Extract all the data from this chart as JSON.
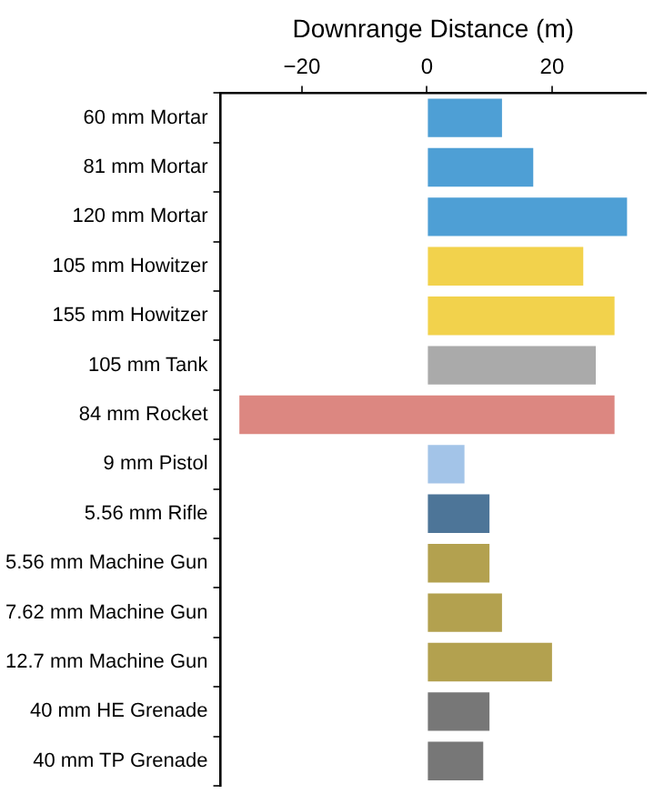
{
  "chart_data": {
    "type": "bar",
    "orientation": "horizontal",
    "xlabel": "Downrange Distance (m)",
    "categories": [
      "60 mm Mortar",
      "81 mm Mortar",
      "120 mm Mortar",
      "105 mm Howitzer",
      "155 mm Howitzer",
      "105 mm Tank",
      "84 mm Rocket",
      "9 mm Pistol",
      "5.56 mm Rifle",
      "5.56 mm Machine Gun",
      "7.62 mm Machine Gun",
      "12.7 mm Machine Gun",
      "40 mm HE Grenade",
      "40 mm TP Grenade"
    ],
    "values": [
      12,
      17,
      32,
      25,
      30,
      27,
      60,
      6,
      10,
      10,
      12,
      20,
      10,
      9
    ],
    "base": [
      0,
      0,
      0,
      0,
      0,
      0,
      -30,
      0,
      0,
      0,
      0,
      0,
      0,
      0
    ],
    "colors": [
      "#4e9fd5",
      "#4e9fd5",
      "#4e9fd5",
      "#f2d24c",
      "#f2d24c",
      "#aaaaaa",
      "#dc8781",
      "#a3c4e8",
      "#4d7598",
      "#b3a14f",
      "#b3a14f",
      "#b3a14f",
      "#777777",
      "#777777"
    ],
    "xlim": [
      -33,
      35
    ],
    "xticks": [
      -20,
      0,
      20
    ],
    "grid": false,
    "legend": false
  }
}
